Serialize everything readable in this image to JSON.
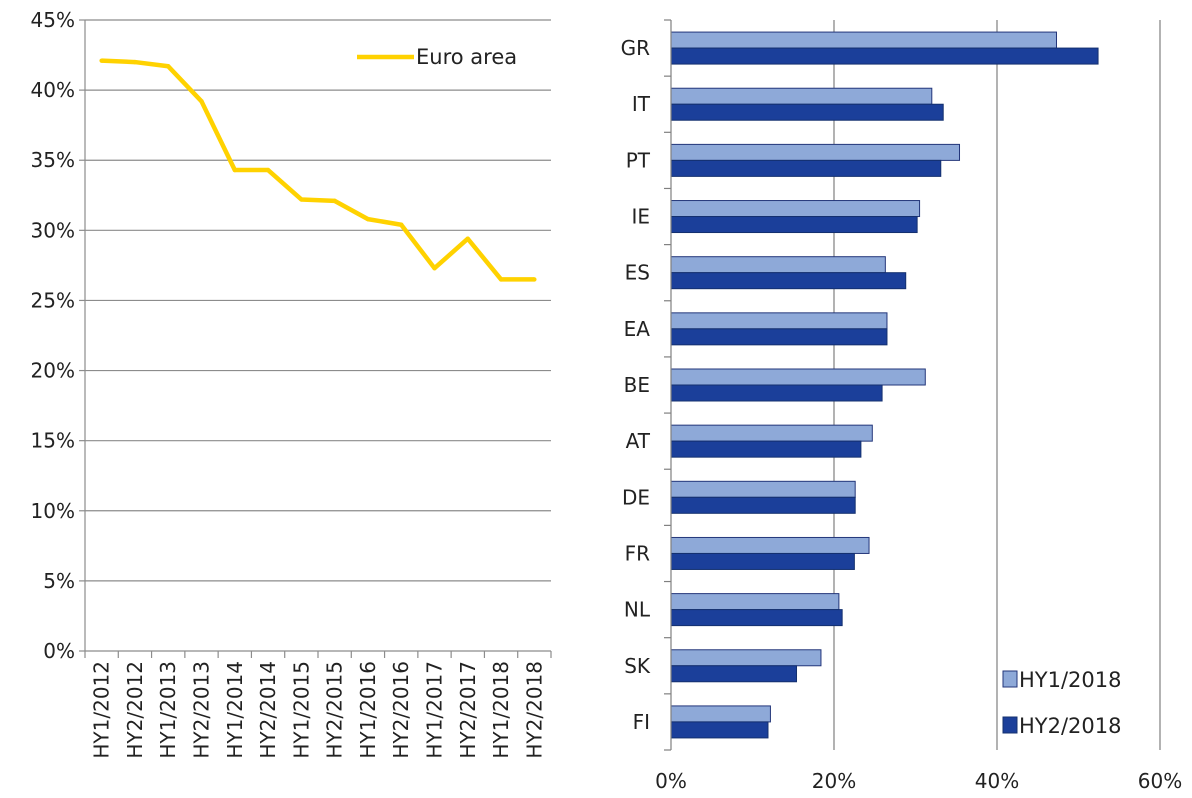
{
  "colors": {
    "line": "#FFD200",
    "hy1": "#8EA9D8",
    "hy2": "#1B3F9A",
    "grid_left": "#8C8C8C",
    "grid_right": "#808080"
  },
  "chart_data": [
    {
      "type": "line",
      "x": [
        "HY1/2012",
        "HY2/2012",
        "HY1/2013",
        "HY2/2013",
        "HY1/2014",
        "HY2/2014",
        "HY1/2015",
        "HY2/2015",
        "HY1/2016",
        "HY2/2016",
        "HY1/2017",
        "HY2/2017",
        "HY1/2018",
        "HY2/2018"
      ],
      "series": [
        {
          "name": "Euro area",
          "values": [
            42.1,
            42.0,
            41.7,
            39.2,
            34.3,
            34.3,
            32.2,
            32.1,
            30.8,
            30.4,
            27.3,
            29.4,
            26.5,
            26.5
          ]
        }
      ],
      "yticks": [
        "0%",
        "5%",
        "10%",
        "15%",
        "20%",
        "25%",
        "30%",
        "35%",
        "40%",
        "45%"
      ],
      "ylim": [
        0,
        45
      ],
      "grid": true,
      "legend": "top-right"
    },
    {
      "type": "bar",
      "orientation": "horizontal",
      "categories": [
        "GR",
        "IT",
        "PT",
        "IE",
        "ES",
        "EA",
        "BE",
        "AT",
        "DE",
        "FR",
        "NL",
        "SK",
        "FI"
      ],
      "series": [
        {
          "name": "HY1/2018",
          "values": [
            47.3,
            32.0,
            35.4,
            30.5,
            26.3,
            26.5,
            31.2,
            24.7,
            22.6,
            24.3,
            20.6,
            18.4,
            12.2
          ]
        },
        {
          "name": "HY2/2018",
          "values": [
            52.4,
            33.4,
            33.1,
            30.2,
            28.8,
            26.5,
            25.9,
            23.3,
            22.6,
            22.5,
            21.0,
            15.4,
            11.9
          ]
        }
      ],
      "xticks": [
        "0%",
        "20%",
        "40%",
        "60%"
      ],
      "xlim": [
        0,
        60
      ],
      "grid": true,
      "legend": "bottom-right"
    }
  ]
}
